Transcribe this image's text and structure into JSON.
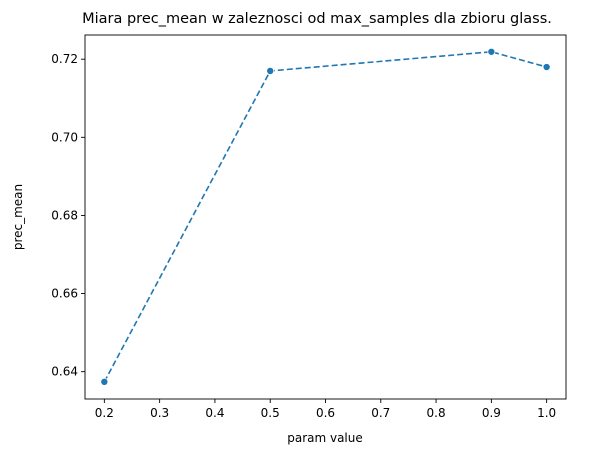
{
  "chart_data": {
    "type": "line",
    "title": "Miara prec_mean w zaleznosci od max_samples dla zbioru glass.",
    "xlabel": "param value",
    "ylabel": "prec_mean",
    "x": [
      0.2,
      0.5,
      0.9,
      1.0
    ],
    "y": [
      0.6374,
      0.717,
      0.7219,
      0.718
    ],
    "xlim": [
      0.165,
      1.035
    ],
    "ylim": [
      0.633,
      0.7262
    ],
    "xticks": [
      0.2,
      0.3,
      0.4,
      0.5,
      0.6,
      0.7,
      0.8,
      0.9,
      1.0
    ],
    "xtick_labels": [
      "0.2",
      "0.3",
      "0.4",
      "0.5",
      "0.6",
      "0.7",
      "0.8",
      "0.9",
      "1.0"
    ],
    "yticks": [
      0.64,
      0.66,
      0.68,
      0.7,
      0.72
    ],
    "ytick_labels": [
      "0.64",
      "0.66",
      "0.68",
      "0.70",
      "0.72"
    ],
    "grid": false,
    "line_style": "dashed",
    "marker": "circle",
    "color": "#1f77b4"
  }
}
